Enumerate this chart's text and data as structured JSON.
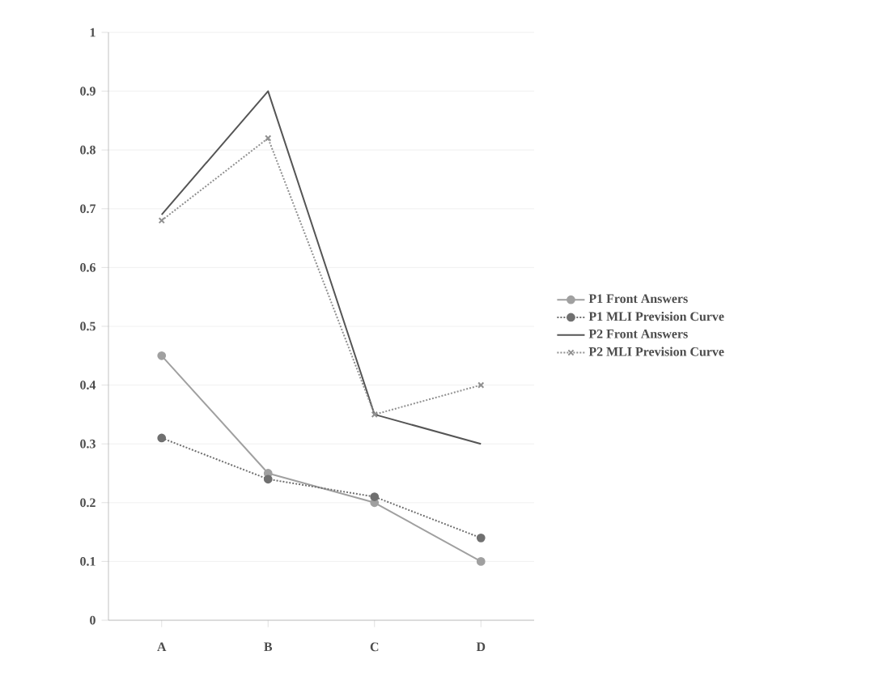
{
  "chart_data": {
    "type": "line",
    "categories": [
      "A",
      "B",
      "C",
      "D"
    ],
    "ylim": [
      0,
      1
    ],
    "yticks": [
      0,
      0.1,
      0.2,
      0.3,
      0.4,
      0.5,
      0.6,
      0.7,
      0.8,
      0.9,
      1
    ],
    "grid": "y",
    "legend": "right",
    "series": [
      {
        "name": "P1 Front Answers",
        "color": "#a0a0a0",
        "values": [
          0.45,
          0.25,
          0.2,
          0.1
        ],
        "marker": "circle",
        "line_style": "solid"
      },
      {
        "name": "P1 MLI Prevision Curve",
        "color": "#707070",
        "values": [
          0.31,
          0.24,
          0.21,
          0.14
        ],
        "marker": "circle",
        "line_style": "dotted"
      },
      {
        "name": "P2 Front Answers",
        "color": "#555555",
        "values": [
          0.69,
          0.9,
          0.35,
          0.3
        ],
        "marker": "none",
        "line_style": "solid"
      },
      {
        "name": "P2 MLI Prevision Curve",
        "color": "#909090",
        "values": [
          0.68,
          0.82,
          0.35,
          0.4
        ],
        "marker": "cross",
        "line_style": "dotted"
      }
    ]
  }
}
